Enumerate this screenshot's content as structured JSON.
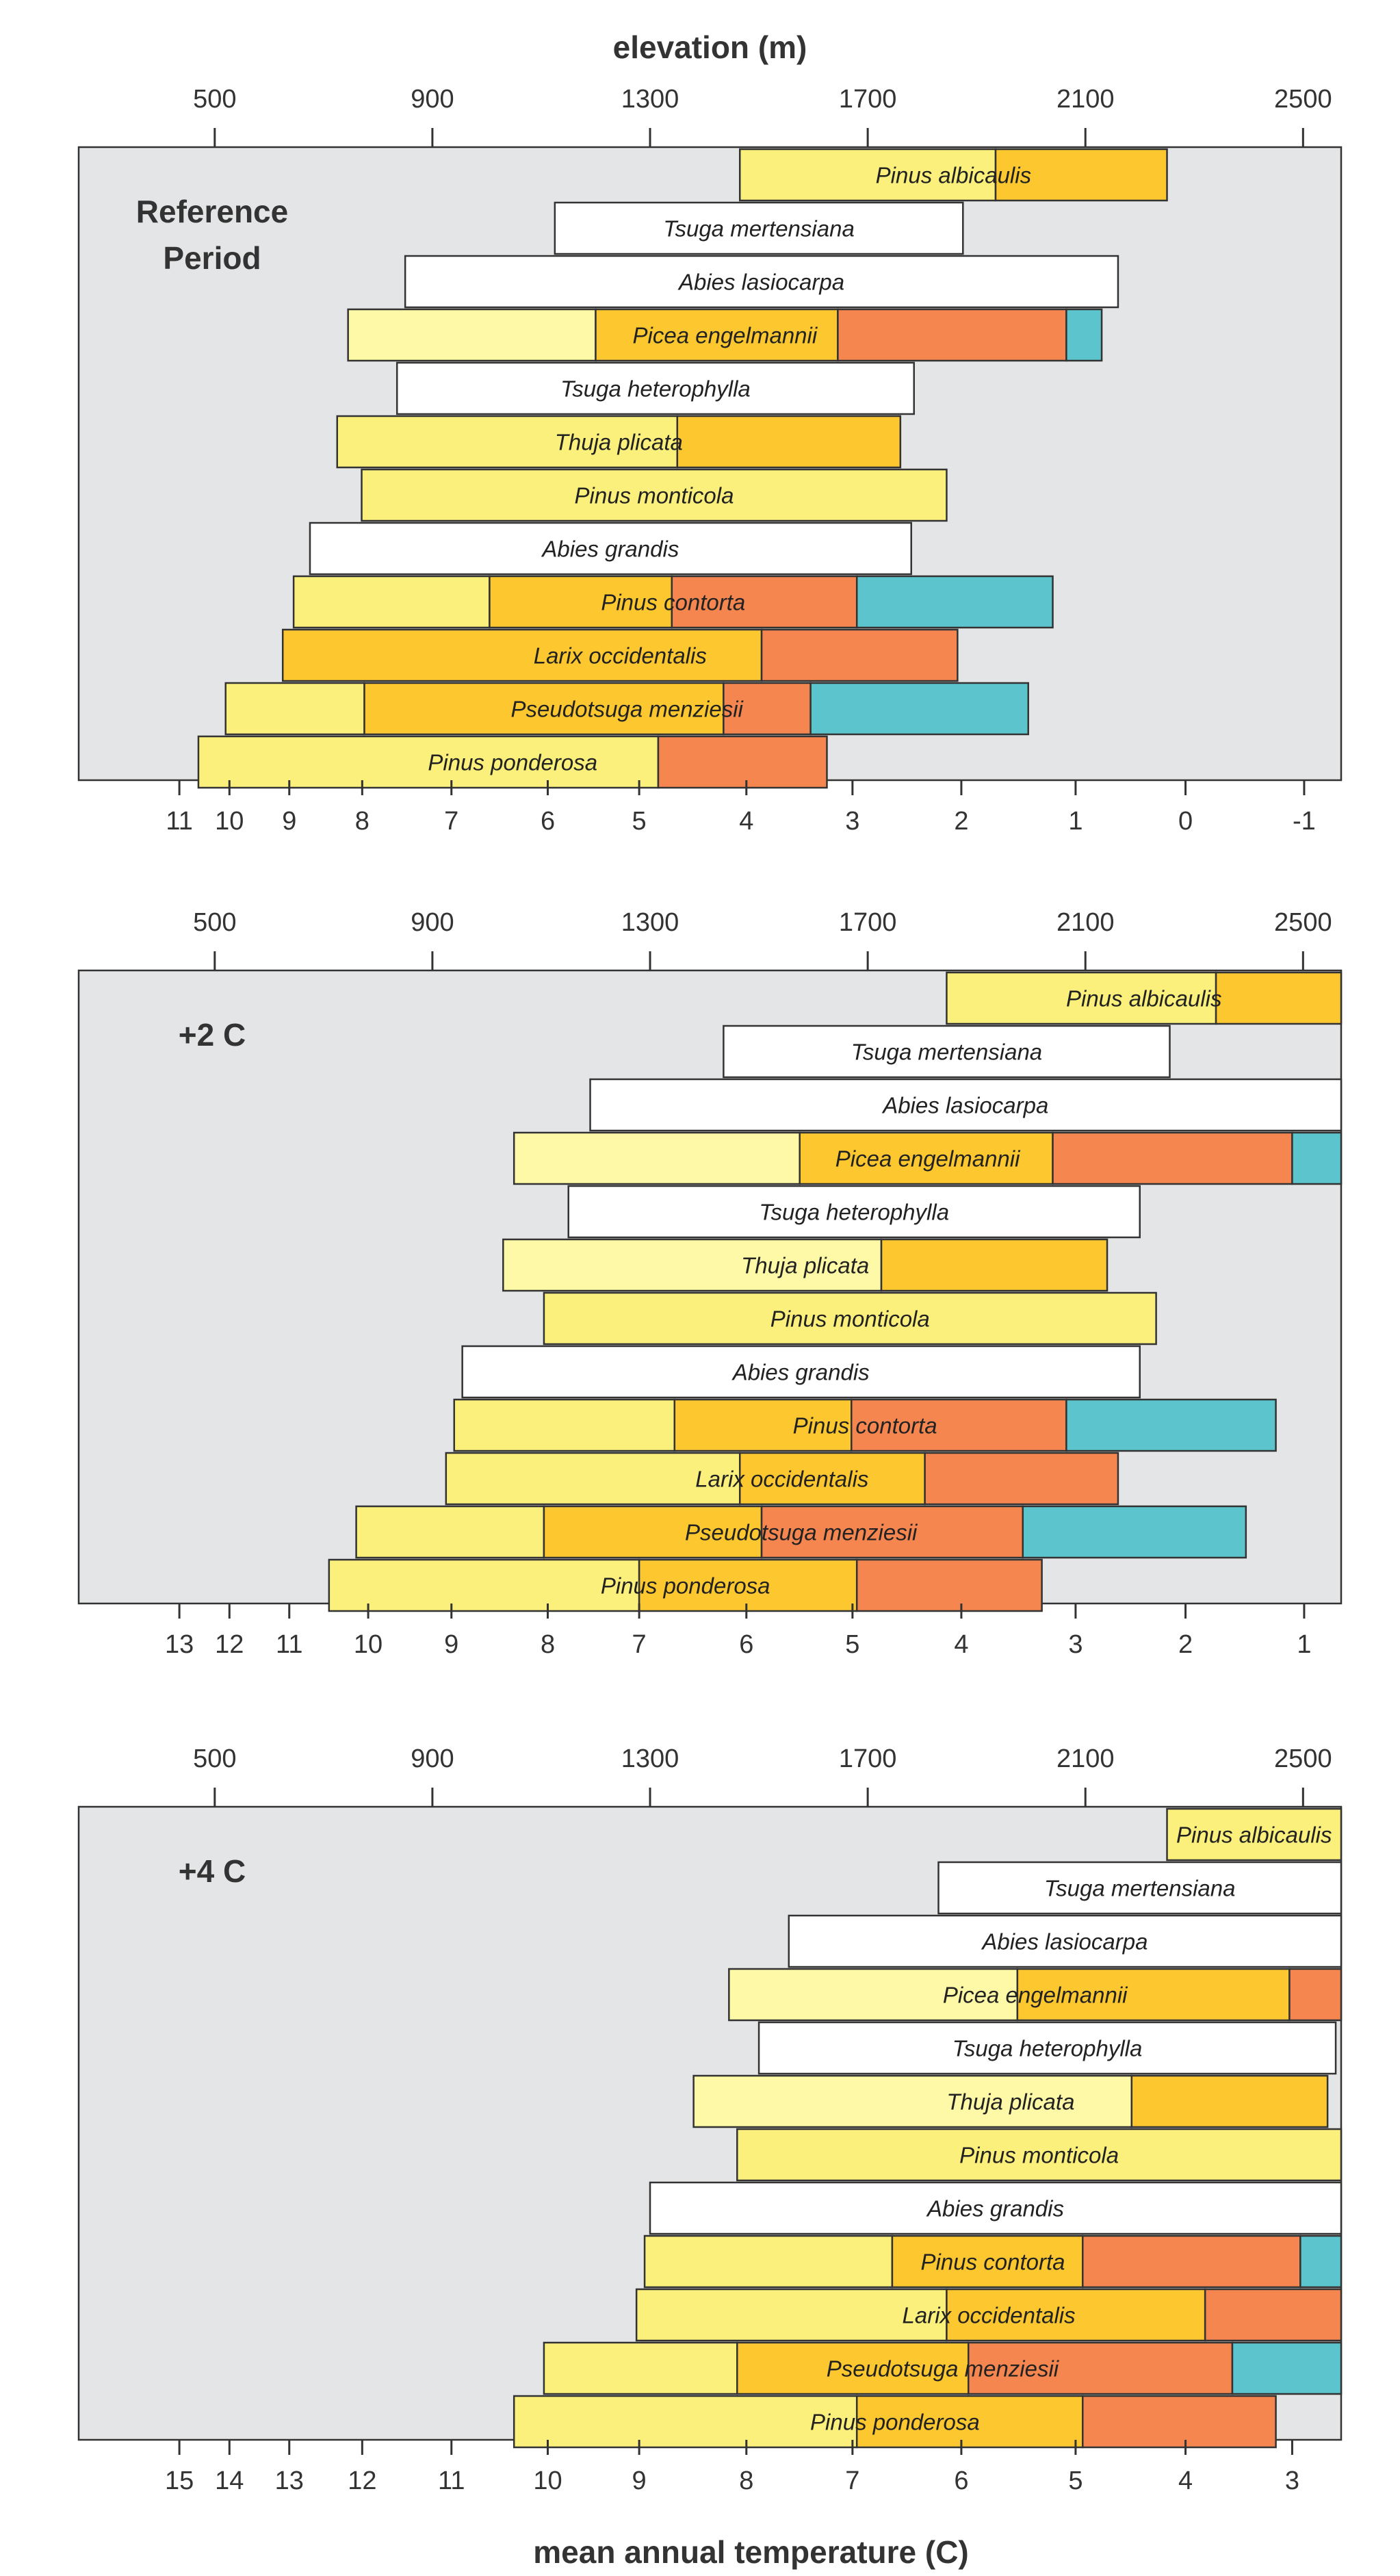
{
  "chart_data": {
    "type": "range-bar",
    "top_axis_title": "elevation (m)",
    "bottom_axis_title": "mean annual temperature (C)",
    "elevation_ticks": [
      500,
      900,
      1300,
      1700,
      2100,
      2500
    ],
    "zone_colors": [
      "#fdf9a6",
      "#faf07b",
      "#fcc72f",
      "#f68650",
      "#5bc4cc"
    ],
    "panels": [
      {
        "label": "Reference Period",
        "label_lines": [
          "Reference",
          "Period"
        ],
        "temp_ticks": [
          11,
          10,
          9,
          8,
          7,
          6,
          5,
          4,
          3,
          2,
          1,
          0,
          -1
        ],
        "temp_tick_elev": [
          435,
          527,
          637,
          771,
          935,
          1112,
          1280,
          1477,
          1672,
          1872,
          2082,
          2284,
          2502
        ],
        "species": [
          {
            "name": "Pinus albicaulis",
            "segments": [
              [
                1465,
                1935,
                1
              ],
              [
                1935,
                2250,
                2
              ]
            ]
          },
          {
            "name": "Tsuga mertensiana",
            "segments": [
              [
                1125,
                1875,
                5
              ]
            ]
          },
          {
            "name": "Abies lasiocarpa",
            "segments": [
              [
                850,
                2160,
                5
              ]
            ]
          },
          {
            "name": "Picea engelmannii",
            "segments": [
              [
                745,
                1200,
                0
              ],
              [
                1200,
                1645,
                2
              ],
              [
                1645,
                2065,
                3
              ],
              [
                2065,
                2130,
                4
              ]
            ]
          },
          {
            "name": "Tsuga heterophylla",
            "segments": [
              [
                835,
                1785,
                5
              ]
            ]
          },
          {
            "name": "Thuja plicata",
            "segments": [
              [
                725,
                1350,
                1
              ],
              [
                1350,
                1760,
                2
              ]
            ]
          },
          {
            "name": "Pinus monticola",
            "segments": [
              [
                770,
                1845,
                1
              ]
            ]
          },
          {
            "name": "Abies grandis",
            "segments": [
              [
                675,
                1780,
                5
              ]
            ]
          },
          {
            "name": "Pinus contorta",
            "segments": [
              [
                645,
                1005,
                1
              ],
              [
                1005,
                1340,
                2
              ],
              [
                1340,
                1680,
                3
              ],
              [
                1680,
                2040,
                4
              ]
            ]
          },
          {
            "name": "Larix occidentalis",
            "segments": [
              [
                625,
                1505,
                2
              ],
              [
                1505,
                1865,
                3
              ]
            ]
          },
          {
            "name": "Pseudotsuga menziesii",
            "segments": [
              [
                520,
                775,
                1
              ],
              [
                775,
                1435,
                2
              ],
              [
                1435,
                1595,
                3
              ],
              [
                1595,
                1995,
                4
              ]
            ]
          },
          {
            "name": "Pinus ponderosa",
            "segments": [
              [
                470,
                1315,
                1
              ],
              [
                1315,
                1625,
                3
              ]
            ]
          }
        ]
      },
      {
        "label": "+2 C",
        "label_lines": [
          "+2 C"
        ],
        "temp_ticks": [
          13,
          12,
          11,
          10,
          9,
          8,
          7,
          6,
          5,
          4,
          3,
          2,
          1
        ],
        "temp_tick_elev": [
          435,
          527,
          637,
          782,
          935,
          1112,
          1280,
          1477,
          1672,
          1872,
          2082,
          2284,
          2502
        ],
        "species": [
          {
            "name": "Pinus albicaulis",
            "segments": [
              [
                1845,
                2340,
                1
              ],
              [
                2340,
                2570,
                2
              ]
            ]
          },
          {
            "name": "Tsuga mertensiana",
            "segments": [
              [
                1435,
                2255,
                5
              ]
            ]
          },
          {
            "name": "Abies lasiocarpa",
            "segments": [
              [
                1190,
                2570,
                5
              ]
            ]
          },
          {
            "name": "Picea engelmannii",
            "segments": [
              [
                1050,
                1575,
                0
              ],
              [
                1575,
                2040,
                2
              ],
              [
                2040,
                2480,
                3
              ],
              [
                2480,
                2570,
                4
              ]
            ]
          },
          {
            "name": "Tsuga heterophylla",
            "segments": [
              [
                1150,
                2200,
                5
              ]
            ]
          },
          {
            "name": "Thuja plicata",
            "segments": [
              [
                1030,
                1725,
                0
              ],
              [
                1725,
                2140,
                2
              ]
            ]
          },
          {
            "name": "Pinus monticola",
            "segments": [
              [
                1105,
                2230,
                1
              ]
            ]
          },
          {
            "name": "Abies grandis",
            "segments": [
              [
                955,
                2200,
                5
              ]
            ]
          },
          {
            "name": "Pinus contorta",
            "segments": [
              [
                940,
                1345,
                1
              ],
              [
                1345,
                1670,
                2
              ],
              [
                1670,
                2065,
                3
              ],
              [
                2065,
                2450,
                4
              ]
            ]
          },
          {
            "name": "Larix occidentalis",
            "segments": [
              [
                925,
                1465,
                1
              ],
              [
                1465,
                1805,
                2
              ],
              [
                1805,
                2160,
                3
              ]
            ]
          },
          {
            "name": "Pseudotsuga menziesii",
            "segments": [
              [
                760,
                1105,
                1
              ],
              [
                1105,
                1505,
                2
              ],
              [
                1505,
                1985,
                3
              ],
              [
                1985,
                2395,
                4
              ]
            ]
          },
          {
            "name": "Pinus ponderosa",
            "segments": [
              [
                710,
                1280,
                1
              ],
              [
                1280,
                1680,
                2
              ],
              [
                1680,
                2020,
                3
              ]
            ]
          }
        ]
      },
      {
        "label": "+4 C",
        "label_lines": [
          "+4 C"
        ],
        "temp_ticks": [
          15,
          14,
          13,
          12,
          11,
          10,
          9,
          8,
          7,
          6,
          5,
          4,
          3
        ],
        "temp_tick_elev": [
          435,
          527,
          637,
          771,
          935,
          1112,
          1280,
          1477,
          1672,
          1872,
          2082,
          2284,
          2480
        ],
        "species": [
          {
            "name": "Pinus albicaulis",
            "segments": [
              [
                2250,
                2570,
                1
              ]
            ]
          },
          {
            "name": "Tsuga mertensiana",
            "segments": [
              [
                1830,
                2570,
                5
              ]
            ]
          },
          {
            "name": "Abies lasiocarpa",
            "segments": [
              [
                1555,
                2570,
                5
              ]
            ]
          },
          {
            "name": "Picea engelmannii",
            "segments": [
              [
                1445,
                1975,
                0
              ],
              [
                1975,
                2475,
                2
              ],
              [
                2475,
                2570,
                3
              ]
            ]
          },
          {
            "name": "Tsuga heterophylla",
            "segments": [
              [
                1500,
                2560,
                5
              ]
            ]
          },
          {
            "name": "Thuja plicata",
            "segments": [
              [
                1380,
                2185,
                0
              ],
              [
                2185,
                2545,
                2
              ]
            ]
          },
          {
            "name": "Pinus monticola",
            "segments": [
              [
                1460,
                2570,
                1
              ]
            ]
          },
          {
            "name": "Abies grandis",
            "segments": [
              [
                1300,
                2570,
                5
              ]
            ]
          },
          {
            "name": "Pinus contorta",
            "segments": [
              [
                1290,
                1745,
                1
              ],
              [
                1745,
                2095,
                2
              ],
              [
                2095,
                2495,
                3
              ],
              [
                2495,
                2570,
                4
              ]
            ]
          },
          {
            "name": "Larix occidentalis",
            "segments": [
              [
                1275,
                1845,
                1
              ],
              [
                1845,
                2320,
                2
              ],
              [
                2320,
                2570,
                3
              ]
            ]
          },
          {
            "name": "Pseudotsuga menziesii",
            "segments": [
              [
                1105,
                1460,
                1
              ],
              [
                1460,
                1885,
                2
              ],
              [
                1885,
                2370,
                3
              ],
              [
                2370,
                2570,
                4
              ]
            ]
          },
          {
            "name": "Pinus ponderosa",
            "segments": [
              [
                1050,
                1680,
                1
              ],
              [
                1680,
                2095,
                2
              ],
              [
                2095,
                2450,
                3
              ]
            ]
          }
        ]
      }
    ]
  }
}
